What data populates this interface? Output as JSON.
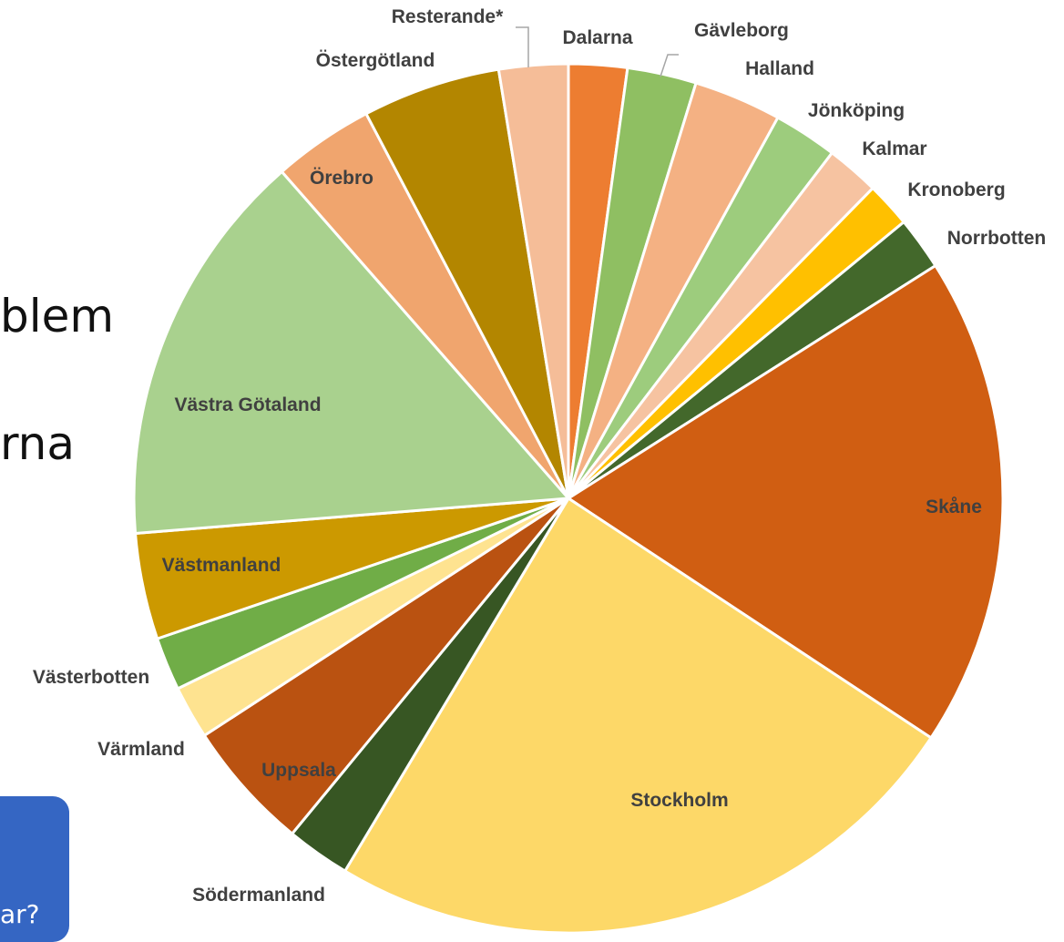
{
  "slide": {
    "fragment_1": "blem",
    "fragment_2": "rna",
    "callout_text": "ar?"
  },
  "chart_data": {
    "type": "pie",
    "title": "",
    "start_angle_deg": 0,
    "direction": "clockwise",
    "slice_border_color": "#ffffff",
    "label_color": "#404040",
    "slices": [
      {
        "label": "Dalarna",
        "value": 2.2,
        "color": "#ED7D31"
      },
      {
        "label": "Gävleborg",
        "value": 2.6,
        "color": "#8FBF62"
      },
      {
        "label": "Halland",
        "value": 3.3,
        "color": "#F4B183"
      },
      {
        "label": "Jönköping",
        "value": 2.4,
        "color": "#9DCC7D"
      },
      {
        "label": "Kalmar",
        "value": 2.0,
        "color": "#F6C3A1"
      },
      {
        "label": "Kronoberg",
        "value": 1.7,
        "color": "#FFC000"
      },
      {
        "label": "Norrbotten",
        "value": 2.0,
        "color": "#43682B"
      },
      {
        "label": "Skåne",
        "value": 18.5,
        "color": "#D05E12"
      },
      {
        "label": "Stockholm",
        "value": 24.6,
        "color": "#FDD868"
      },
      {
        "label": "Södermanland",
        "value": 2.4,
        "color": "#375623"
      },
      {
        "label": "Uppsala",
        "value": 4.9,
        "color": "#BA5211"
      },
      {
        "label": "Värmland",
        "value": 2.0,
        "color": "#FEE390"
      },
      {
        "label": "Västerbotten",
        "value": 2.0,
        "color": "#70AD47"
      },
      {
        "label": "Västmanland",
        "value": 4.0,
        "color": "#CC9900"
      },
      {
        "label": "Västra Götaland",
        "value": 15.0,
        "color": "#A9D18E"
      },
      {
        "label": "Örebro",
        "value": 3.8,
        "color": "#F0A56E"
      },
      {
        "label": "Östergötland",
        "value": 5.2,
        "color": "#B38600"
      },
      {
        "label": "Resterande*",
        "value": 2.6,
        "color": "#F5BD98"
      }
    ]
  }
}
